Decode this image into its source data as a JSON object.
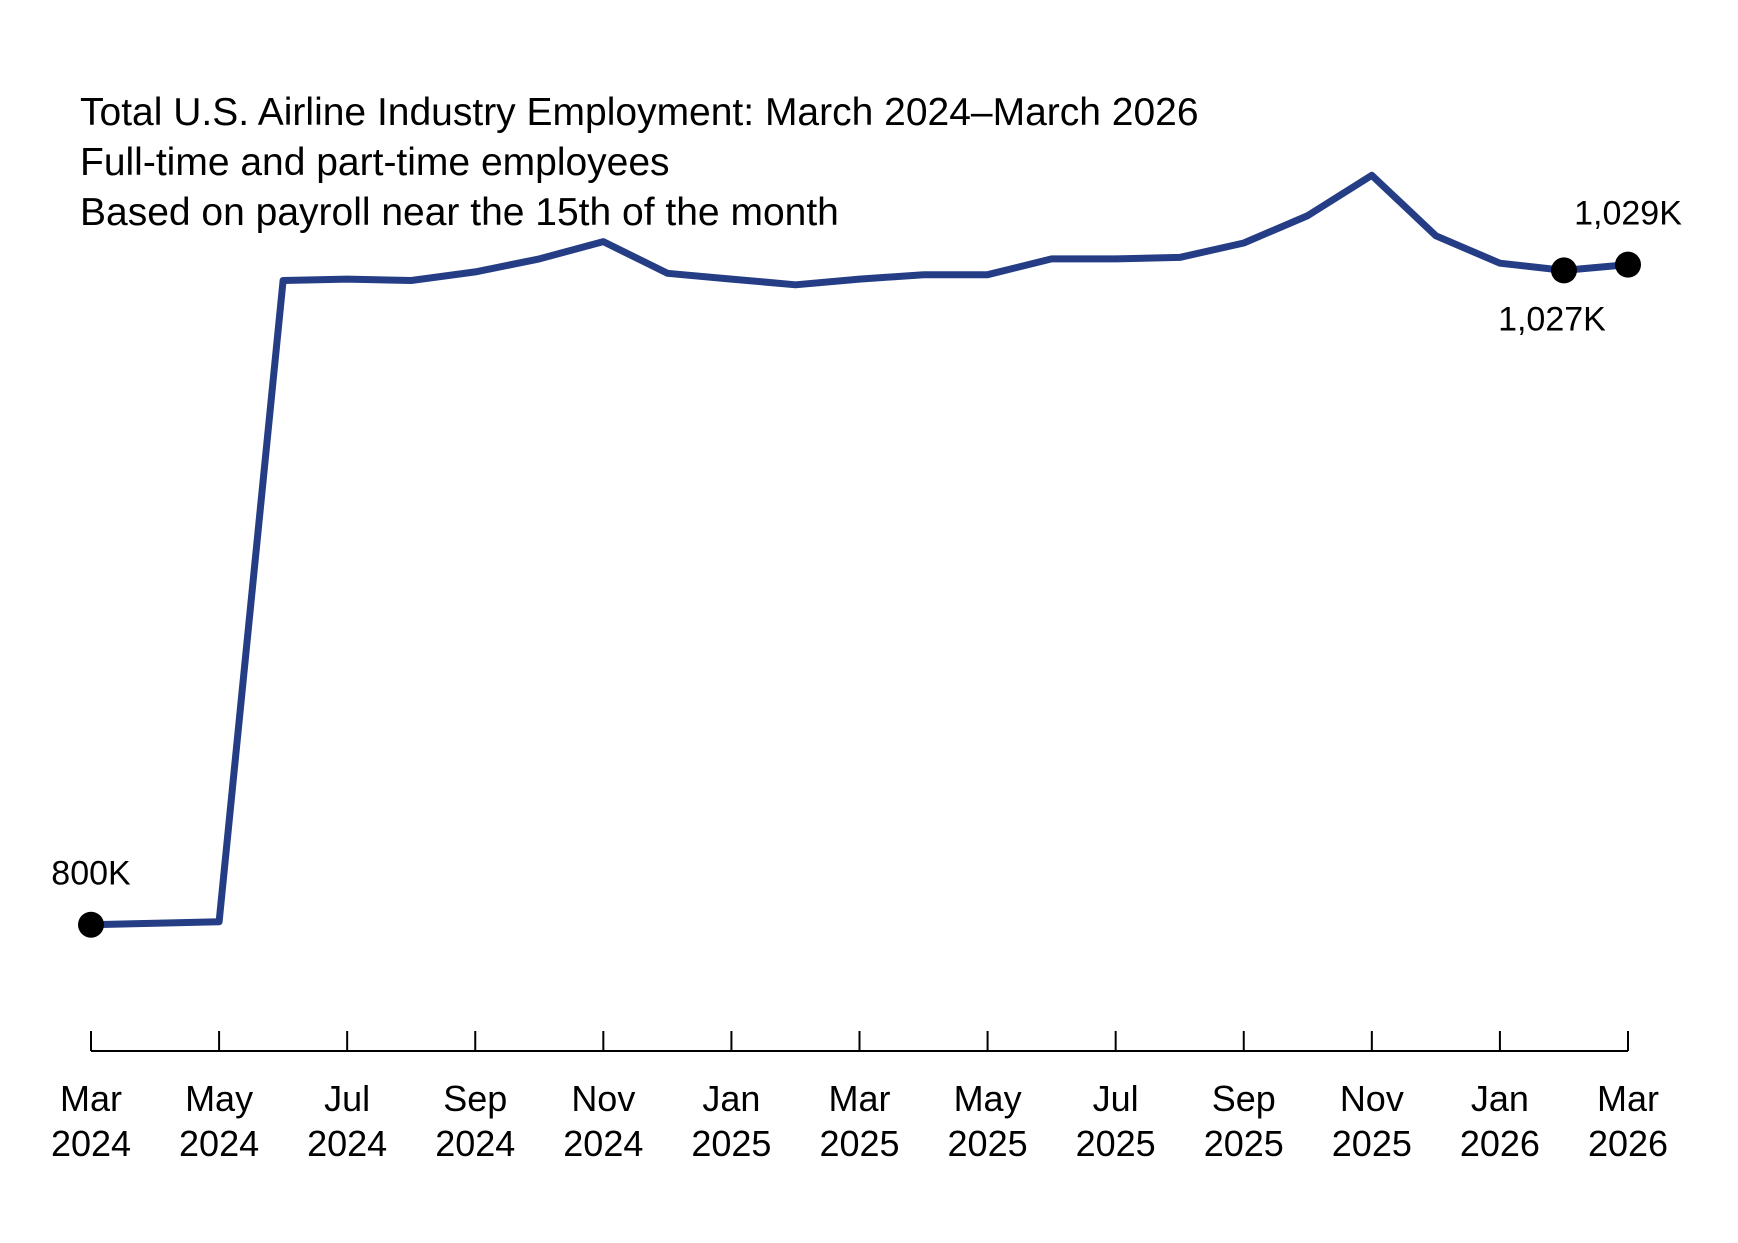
{
  "chart_data": {
    "type": "line",
    "title": "Total U.S. Airline Industry Employment: March 2024–March 2026",
    "subtitle": [
      "Full-time and part-time employees",
      "Based on payroll near the 15th of the month"
    ],
    "xlabel": "",
    "ylabel": "",
    "grid": false,
    "legend": "none",
    "line_color": "#253d85",
    "marker_color": "#000000",
    "x": [
      "2024-03",
      "2024-04",
      "2024-05",
      "2024-06",
      "2024-07",
      "2024-08",
      "2024-09",
      "2024-10",
      "2024-11",
      "2024-12",
      "2025-01",
      "2025-02",
      "2025-03",
      "2025-04",
      "2025-05",
      "2025-06",
      "2025-07",
      "2025-08",
      "2025-09",
      "2025-10",
      "2025-11",
      "2025-12",
      "2026-01",
      "2026-02",
      "2026-03"
    ],
    "series": [
      {
        "values": [
          800,
          800.5,
          801,
          1023.5,
          1024,
          1023.5,
          1026.5,
          1031,
          1037,
          1026,
          1024,
          1022,
          1024,
          1025.5,
          1025.5,
          1031,
          1031,
          1031.5,
          1036.5,
          1046,
          1060,
          1039,
          1029.5,
          1027,
          1029
        ]
      }
    ],
    "ylim": [
      760,
      1100
    ],
    "ticks": [
      {
        "index": 0,
        "month": "Mar",
        "year": "2024"
      },
      {
        "index": 2,
        "month": "May",
        "year": "2024"
      },
      {
        "index": 4,
        "month": "Jul",
        "year": "2024"
      },
      {
        "index": 6,
        "month": "Sep",
        "year": "2024"
      },
      {
        "index": 8,
        "month": "Nov",
        "year": "2024"
      },
      {
        "index": 10,
        "month": "Jan",
        "year": "2025"
      },
      {
        "index": 12,
        "month": "Mar",
        "year": "2025"
      },
      {
        "index": 14,
        "month": "May",
        "year": "2025"
      },
      {
        "index": 16,
        "month": "Jul",
        "year": "2025"
      },
      {
        "index": 18,
        "month": "Sep",
        "year": "2025"
      },
      {
        "index": 20,
        "month": "Nov",
        "year": "2025"
      },
      {
        "index": 22,
        "month": "Jan",
        "year": "2026"
      },
      {
        "index": 24,
        "month": "Mar",
        "year": "2026"
      }
    ],
    "annotations": [
      {
        "index": 0,
        "label": "800K",
        "position": "above"
      },
      {
        "index": 23,
        "label": "1,027K",
        "position": "below"
      },
      {
        "index": 24,
        "label": "1,029K",
        "position": "above"
      }
    ]
  }
}
